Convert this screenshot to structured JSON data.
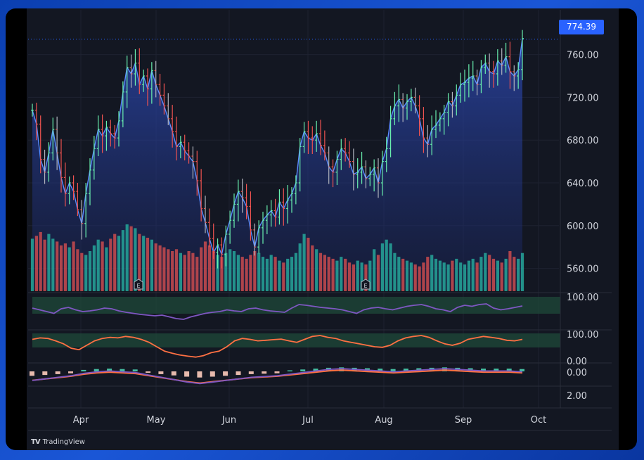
{
  "brand": {
    "name": "TradingView",
    "logo_text": "TV"
  },
  "colors": {
    "up": "#26a69a",
    "down": "#ef5350",
    "up_vol": "#26a69a",
    "down_vol": "#c94b4f",
    "candle_up": "#69f0ae",
    "candle_down": "#ef5350",
    "area_line": "#5b8cff",
    "accent": "#2962ff",
    "rsi": "#7e57c2",
    "stoch": "#ff7043",
    "band": "#1f4d3a"
  },
  "chart_data": {
    "type": "line",
    "title": "",
    "x_axis": {
      "ticks": [
        "Apr",
        "May",
        "Jun",
        "Jul",
        "Aug",
        "Sep",
        "Oct"
      ]
    },
    "price_axis": {
      "range": [
        540,
        790
      ],
      "ticks": [
        "760.00",
        "720.00",
        "680.00",
        "640.00",
        "600.00",
        "560.00"
      ],
      "last_price": "774.39"
    },
    "series": [
      {
        "name": "",
        "kind": "price",
        "close": [
          708,
          695,
          662,
          650,
          668,
          690,
          668,
          645,
          630,
          640,
          632,
          615,
          602,
          630,
          652,
          672,
          690,
          684,
          692,
          686,
          682,
          698,
          725,
          748,
          742,
          752,
          732,
          740,
          728,
          745,
          732,
          722,
          712,
          700,
          688,
          674,
          678,
          670,
          665,
          660,
          642,
          616,
          603,
          588,
          575,
          582,
          573,
          592,
          605,
          620,
          632,
          626,
          618,
          596,
          580,
          598,
          605,
          610,
          614,
          608,
          622,
          616,
          624,
          630,
          640,
          674,
          688,
          682,
          680,
          686,
          675,
          668,
          655,
          650,
          662,
          672,
          668,
          660,
          648,
          650,
          655,
          644,
          648,
          654,
          640,
          660,
          672,
          700,
          712,
          718,
          710,
          716,
          720,
          712,
          700,
          682,
          676,
          690,
          694,
          700,
          706,
          716,
          712,
          722,
          732,
          734,
          738,
          740,
          732,
          748,
          752,
          744,
          742,
          754,
          750,
          758,
          744,
          740,
          746,
          775
        ],
        "open_close_direction_note": "up/down per bar derived from close change"
      },
      {
        "name": "",
        "kind": "volume",
        "values": [
          55,
          58,
          62,
          54,
          60,
          55,
          52,
          48,
          50,
          46,
          52,
          44,
          40,
          38,
          42,
          48,
          54,
          52,
          46,
          55,
          60,
          58,
          64,
          70,
          68,
          66,
          60,
          58,
          56,
          54,
          50,
          48,
          46,
          44,
          42,
          44,
          40,
          38,
          42,
          40,
          36,
          46,
          52,
          48,
          42,
          38,
          36,
          40,
          44,
          42,
          38,
          36,
          34,
          38,
          42,
          40,
          36,
          34,
          38,
          36,
          32,
          30,
          34,
          36,
          40,
          50,
          60,
          56,
          48,
          44,
          40,
          38,
          36,
          34,
          32,
          36,
          34,
          30,
          28,
          32,
          30,
          28,
          32,
          44,
          38,
          50,
          54,
          50,
          40,
          36,
          34,
          32,
          30,
          28,
          26,
          30,
          36,
          38,
          34,
          32,
          30,
          28,
          32,
          34,
          30,
          28,
          32,
          34,
          30,
          36,
          40,
          38,
          34,
          32,
          30,
          34,
          42,
          36,
          34,
          40
        ]
      },
      {
        "name": "",
        "kind": "rsi",
        "range": [
          0,
          100
        ],
        "values": [
          60,
          55,
          50,
          45,
          58,
          62,
          55,
          50,
          52,
          55,
          60,
          58,
          52,
          48,
          45,
          42,
          40,
          38,
          40,
          35,
          30,
          28,
          35,
          40,
          45,
          48,
          50,
          55,
          52,
          50,
          58,
          60,
          55,
          52,
          50,
          48,
          60,
          70,
          68,
          65,
          62,
          60,
          58,
          55,
          50,
          45,
          55,
          60,
          62,
          58,
          55,
          60,
          65,
          68,
          70,
          65,
          58,
          55,
          50,
          62,
          68,
          65,
          70,
          72,
          60,
          55,
          58,
          62,
          66
        ]
      },
      {
        "name": "",
        "kind": "stochastic",
        "range": [
          0,
          100
        ],
        "values": [
          75,
          80,
          78,
          70,
          60,
          45,
          40,
          55,
          70,
          78,
          82,
          80,
          85,
          82,
          75,
          65,
          50,
          35,
          28,
          22,
          18,
          15,
          20,
          30,
          35,
          50,
          70,
          78,
          75,
          70,
          72,
          74,
          76,
          70,
          65,
          75,
          85,
          88,
          82,
          78,
          70,
          65,
          60,
          55,
          50,
          48,
          55,
          70,
          80,
          85,
          88,
          82,
          70,
          60,
          55,
          62,
          75,
          80,
          85,
          82,
          78,
          72,
          70,
          75
        ]
      },
      {
        "name": "",
        "kind": "macd",
        "values": [
          -8,
          -6,
          -4,
          -2,
          1,
          3,
          4,
          3,
          2,
          -1,
          -4,
          -7,
          -10,
          -12,
          -10,
          -8,
          -6,
          -4,
          -3,
          -2,
          0,
          2,
          4,
          6,
          7,
          6,
          5,
          4,
          3,
          4,
          5,
          6,
          7,
          6,
          5,
          4,
          4,
          4,
          3
        ]
      }
    ],
    "panes": [
      {
        "name": "rsi",
        "axis_label": "100.00"
      },
      {
        "name": "stochastic",
        "axis_labels": [
          "100.00",
          "0.00"
        ]
      },
      {
        "name": "macd",
        "axis_labels": [
          "0.00",
          "2.00"
        ]
      }
    ],
    "earnings_markers": [
      {
        "label": "E",
        "near": "Apr"
      },
      {
        "label": "E",
        "near": "Aug"
      }
    ]
  }
}
